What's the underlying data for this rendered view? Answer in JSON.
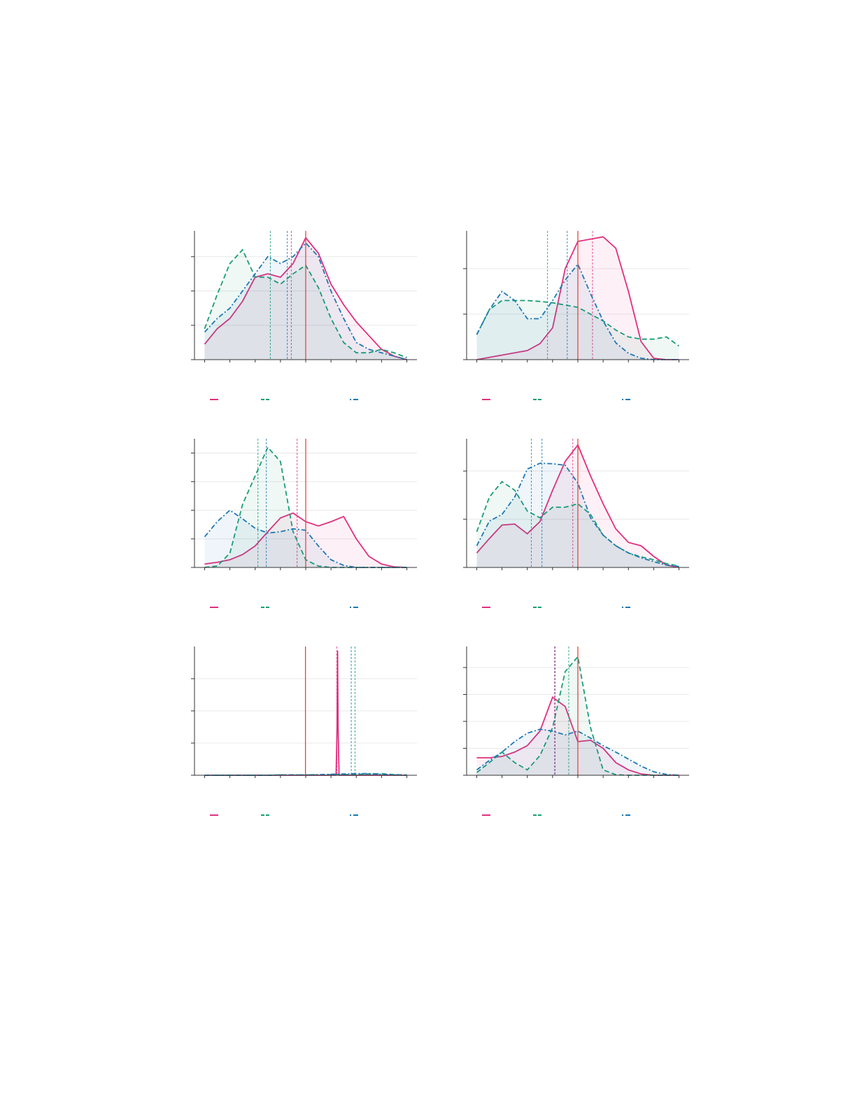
{
  "chart_data": [
    {
      "type": "line",
      "x": [
        0,
        0.5,
        1,
        1.5,
        2,
        2.5,
        3,
        3.5,
        4,
        4.5,
        5,
        5.5,
        6,
        6.5,
        7,
        7.5,
        8
      ],
      "xlim": [
        -0.4,
        8.4
      ],
      "xticks": [
        0,
        1,
        2,
        3,
        4,
        5,
        6,
        7,
        8
      ],
      "ylim": [
        0,
        3.75
      ],
      "yticks": [
        0,
        1,
        2,
        3
      ],
      "grid": true,
      "ref_line": 4,
      "ref_color": "#e8453c",
      "series": [
        {
          "color": "#e0307f",
          "dash": "solid",
          "mean": 3.43,
          "values": [
            0.45,
            0.9,
            1.2,
            1.7,
            2.4,
            2.5,
            2.4,
            2.8,
            3.55,
            3.1,
            2.2,
            1.6,
            1.1,
            0.7,
            0.3,
            0.1,
            0.0
          ]
        },
        {
          "color": "#1a9e77",
          "dash": "dashed",
          "mean": 2.6,
          "values": [
            0.9,
            1.9,
            2.8,
            3.2,
            2.4,
            2.4,
            2.2,
            2.5,
            2.75,
            2.1,
            1.2,
            0.5,
            0.2,
            0.2,
            0.3,
            0.2,
            0.06
          ]
        },
        {
          "color": "#1f78b4",
          "dash": "dashdot",
          "mean": 3.27,
          "values": [
            0.8,
            1.2,
            1.5,
            2.0,
            2.5,
            3.0,
            2.8,
            3.0,
            3.4,
            3.0,
            2.0,
            1.2,
            0.5,
            0.3,
            0.2,
            0.1,
            0.0
          ]
        }
      ]
    },
    {
      "type": "line",
      "x": [
        0,
        0.5,
        1,
        1.5,
        2,
        2.5,
        3,
        3.5,
        4,
        4.5,
        5,
        5.5,
        6,
        6.5,
        7,
        7.5,
        8
      ],
      "xlim": [
        -0.4,
        8.4
      ],
      "xticks": [
        0,
        1,
        2,
        3,
        4,
        5,
        6,
        7,
        8
      ],
      "ylim": [
        0,
        2.83
      ],
      "yticks": [
        0,
        1,
        2
      ],
      "grid": true,
      "ref_line": 4,
      "ref_color": "#e8453c",
      "series": [
        {
          "color": "#e0307f",
          "dash": "solid",
          "mean": 4.58,
          "values": [
            0,
            0.05,
            0.1,
            0.15,
            0.2,
            0.35,
            0.7,
            2.0,
            2.6,
            2.65,
            2.7,
            2.45,
            1.5,
            0.4,
            0.03,
            0,
            0
          ]
        },
        {
          "color": "#1a9e77",
          "dash": "dashed",
          "mean": 2.8,
          "values": [
            0.55,
            1.1,
            1.3,
            1.3,
            1.3,
            1.28,
            1.25,
            1.2,
            1.15,
            1.0,
            0.85,
            0.65,
            0.5,
            0.45,
            0.45,
            0.5,
            0.3
          ]
        },
        {
          "color": "#1f78b4",
          "dash": "dashdot",
          "mean": 3.58,
          "values": [
            0.55,
            1.1,
            1.5,
            1.3,
            0.9,
            0.9,
            1.3,
            1.75,
            2.1,
            1.45,
            0.85,
            0.37,
            0.14,
            0.03,
            0,
            0,
            0
          ]
        }
      ]
    },
    {
      "type": "line",
      "x": [
        0,
        0.5,
        1,
        1.5,
        2,
        2.5,
        3,
        3.5,
        4,
        4.5,
        5,
        5.5,
        6,
        6.5,
        7,
        7.5,
        8
      ],
      "xlim": [
        -0.4,
        8.4
      ],
      "xticks": [
        0,
        1,
        2,
        3,
        4,
        5,
        6,
        7,
        8
      ],
      "ylim": [
        0,
        4.5
      ],
      "yticks": [
        0,
        1,
        2,
        3,
        4
      ],
      "grid": true,
      "ref_line": 4,
      "ref_color": "#e8453c",
      "series": [
        {
          "color": "#e0307f",
          "dash": "solid",
          "mean": 3.66,
          "values": [
            0.12,
            0.18,
            0.27,
            0.45,
            0.75,
            1.25,
            1.73,
            1.9,
            1.6,
            1.45,
            1.6,
            1.78,
            1.0,
            0.39,
            0.12,
            0.02,
            0
          ]
        },
        {
          "color": "#1a9e77",
          "dash": "dashed",
          "mean": 2.11,
          "values": [
            0,
            0.05,
            0.5,
            2.2,
            3.2,
            4.2,
            3.7,
            1.25,
            0.27,
            0.05,
            0,
            0,
            0,
            0,
            0,
            0,
            0
          ]
        },
        {
          "color": "#1f78b4",
          "dash": "dashdot",
          "mean": 2.44,
          "values": [
            1.07,
            1.6,
            2.0,
            1.7,
            1.37,
            1.2,
            1.25,
            1.35,
            1.3,
            0.75,
            0.27,
            0.07,
            0,
            0,
            0,
            0,
            0
          ]
        }
      ]
    },
    {
      "type": "line",
      "x": [
        0,
        0.5,
        1,
        1.5,
        2,
        2.5,
        3,
        3.5,
        4,
        4.5,
        5,
        5.5,
        6,
        6.5,
        7,
        7.5,
        8
      ],
      "xlim": [
        -0.4,
        8.4
      ],
      "xticks": [
        0,
        1,
        2,
        3,
        4,
        5,
        6,
        7,
        8
      ],
      "ylim": [
        0,
        2.67
      ],
      "yticks": [
        0,
        1,
        2
      ],
      "grid": true,
      "ref_line": 4,
      "ref_color": "#e8453c",
      "series": [
        {
          "color": "#e0307f",
          "dash": "solid",
          "mean": 3.8,
          "values": [
            0.3,
            0.6,
            0.88,
            0.9,
            0.7,
            0.95,
            1.6,
            2.2,
            2.54,
            1.9,
            1.32,
            0.8,
            0.52,
            0.45,
            0.23,
            0.05,
            0
          ]
        },
        {
          "color": "#1a9e77",
          "dash": "dashed",
          "mean": 2.16,
          "values": [
            0.74,
            1.46,
            1.78,
            1.6,
            1.17,
            1.03,
            1.25,
            1.25,
            1.32,
            1.1,
            0.67,
            0.45,
            0.3,
            0.22,
            0.16,
            0.08,
            0.03
          ]
        },
        {
          "color": "#1f78b4",
          "dash": "dashdot",
          "mean": 2.58,
          "values": [
            0.45,
            0.96,
            1.1,
            1.46,
            2.04,
            2.16,
            2.15,
            2.12,
            1.75,
            1.03,
            0.67,
            0.45,
            0.3,
            0.2,
            0.12,
            0.05,
            0.02
          ]
        }
      ]
    },
    {
      "type": "line",
      "x": [
        0,
        0.5,
        1,
        1.5,
        2,
        2.5,
        3,
        3.5,
        4,
        4.5,
        5,
        5.5,
        6,
        6.5,
        7,
        7.5,
        8
      ],
      "xlim": [
        -0.4,
        8.4
      ],
      "xticks": [
        0,
        1,
        2,
        3,
        4,
        5,
        6,
        7,
        8
      ],
      "ylim": [
        0,
        4
      ],
      "yticks": [
        0,
        1,
        2,
        3
      ],
      "grid": true,
      "ref_line": 3.99,
      "ref_color": "#e8453c",
      "series": [
        {
          "color": "#e0307f",
          "dash": "solid",
          "mean": 5.23,
          "x": [
            0,
            5.2,
            5.24,
            5.26,
            5.28,
            5.32,
            8
          ],
          "values": [
            0,
            0,
            1.5,
            3.87,
            1.5,
            0,
            0
          ]
        },
        {
          "color": "#1a9e77",
          "dash": "dashed",
          "mean": 5.95,
          "values": [
            0,
            0,
            0,
            0,
            0,
            0,
            0.01,
            0.01,
            0.01,
            0.01,
            0.02,
            0.02,
            0.03,
            0.04,
            0.05,
            0.02,
            0.01
          ]
        },
        {
          "color": "#1f78b4",
          "dash": "dashdot",
          "mean": 5.8,
          "values": [
            0,
            0,
            0,
            0,
            0,
            0,
            0.01,
            0.01,
            0.01,
            0.02,
            0.03,
            0.04,
            0.05,
            0.05,
            0.03,
            0.01,
            0
          ]
        }
      ]
    },
    {
      "type": "line",
      "x": [
        0,
        0.5,
        1,
        1.5,
        2,
        2.5,
        3,
        3.5,
        4,
        4.5,
        5,
        5.5,
        6,
        6.5,
        7,
        7.5,
        8
      ],
      "xlim": [
        -0.4,
        8.4
      ],
      "xticks": [
        0,
        1,
        2,
        3,
        4,
        5,
        6,
        7,
        8
      ],
      "ylim": [
        0,
        4.78
      ],
      "yticks": [
        0,
        1,
        2,
        3,
        4
      ],
      "grid": true,
      "ref_line": 4,
      "ref_color": "#e8453c",
      "series": [
        {
          "color": "#e0307f",
          "dash": "solid",
          "mean": 3.08,
          "values": [
            0.65,
            0.65,
            0.7,
            0.86,
            1.1,
            1.64,
            2.9,
            2.55,
            1.25,
            1.3,
            1.0,
            0.47,
            0.2,
            0.05,
            0,
            0,
            0
          ]
        },
        {
          "color": "#1a9e77",
          "dash": "dashed",
          "mean": 3.64,
          "values": [
            0.1,
            0.47,
            0.86,
            0.47,
            0.2,
            0.73,
            1.77,
            3.85,
            4.4,
            1.77,
            0.2,
            0.02,
            0,
            0,
            0,
            0,
            0
          ]
        },
        {
          "color": "#1f78b4",
          "dash": "dashdot",
          "mean": 3.1,
          "values": [
            0.2,
            0.55,
            0.86,
            1.25,
            1.56,
            1.71,
            1.64,
            1.5,
            1.64,
            1.38,
            1.1,
            0.86,
            0.6,
            0.34,
            0.13,
            0.03,
            0
          ]
        }
      ]
    }
  ]
}
